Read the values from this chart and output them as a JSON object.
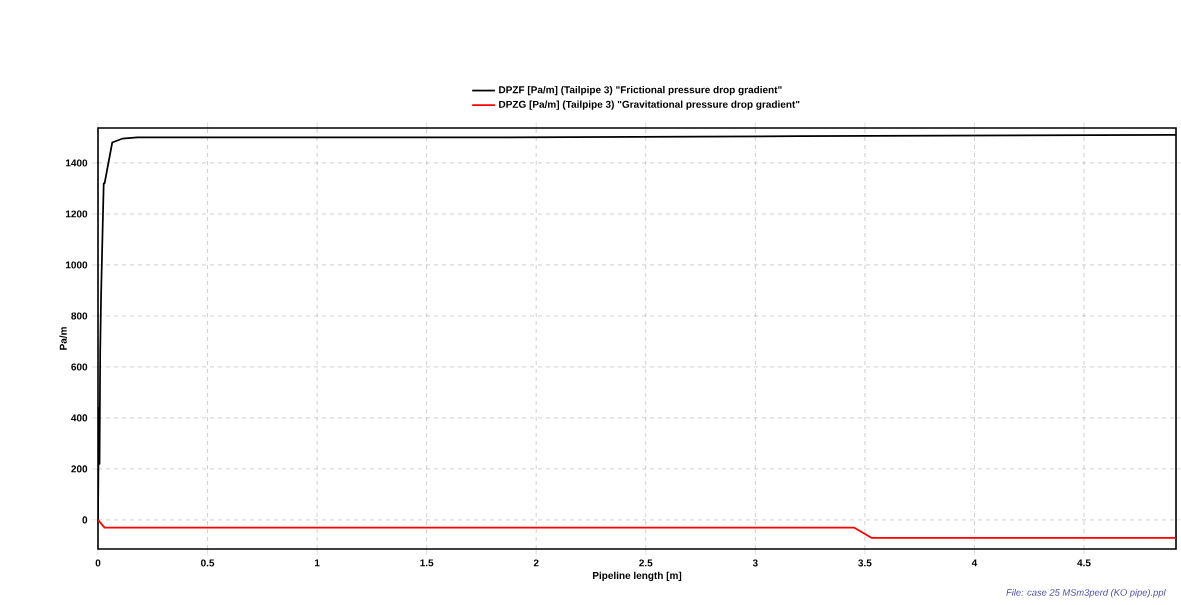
{
  "chart_data": {
    "type": "line",
    "xlabel": "Pipeline length [m]",
    "ylabel": "Pa/m",
    "xlim": [
      0,
      4.92
    ],
    "ylim": [
      -114,
      1537
    ],
    "xticks": [
      0,
      0.5,
      1,
      1.5,
      2,
      2.5,
      3,
      3.5,
      4,
      4.5
    ],
    "yticks": [
      0,
      200,
      400,
      600,
      800,
      1000,
      1200,
      1400
    ],
    "grid": true,
    "legend": "top",
    "line_style": "solid",
    "marker": "none",
    "annotations": [
      "File: case 25 MSm3perd (KO pipe).ppl"
    ],
    "series": [
      {
        "name": "DPZF [Pa/m] (Tailpipe 3) \"Frictional pressure drop gradient\"",
        "color": "#000000",
        "x": [
          0,
          0.004,
          0.007,
          0.01,
          0.014,
          0.02,
          0.026,
          0.03,
          0.065,
          0.11,
          0.18,
          1.7,
          3.2,
          4.92
        ],
        "values": [
          0,
          440,
          220,
          660,
          880,
          1100,
          1320,
          1320,
          1480,
          1495,
          1500,
          1500,
          1505,
          1510
        ]
      },
      {
        "name": "DPZG [Pa/m] (Tailpipe 3) \"Gravitational pressure drop gradient\"",
        "color": "#ff0000",
        "x": [
          0,
          0.03,
          3.45,
          3.53,
          4.92
        ],
        "values": [
          0,
          -30,
          -30,
          -70,
          -70
        ]
      }
    ]
  }
}
